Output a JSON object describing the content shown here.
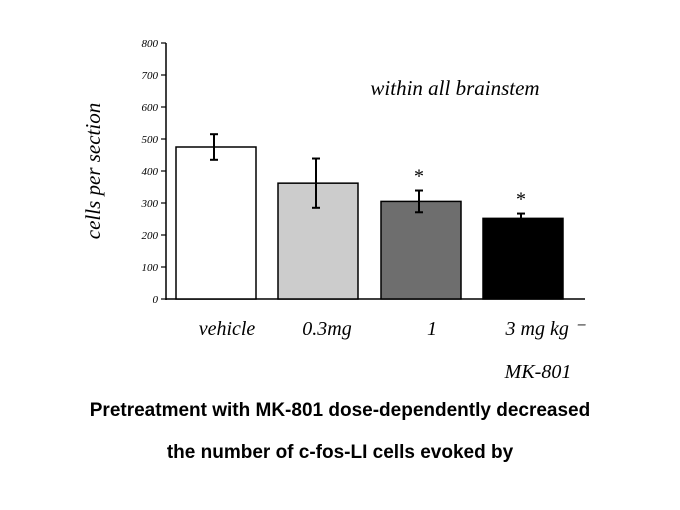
{
  "chart_data": {
    "type": "bar",
    "title": "",
    "xlabel": "",
    "ylabel": "cells per section",
    "ylim": [
      0,
      800
    ],
    "yticks": [
      0,
      100,
      200,
      300,
      400,
      500,
      600,
      700,
      800
    ],
    "categories": [
      "vehicle",
      "0.3mg",
      "1",
      "3 mg kg ⁻"
    ],
    "values": [
      475,
      362,
      305,
      252
    ],
    "errors": [
      40,
      77,
      34,
      15
    ],
    "significance": [
      "",
      "",
      "*",
      "*"
    ],
    "bar_colors": [
      "#ffffff",
      "#cccccc",
      "#6e6e6e",
      "#000000"
    ],
    "annotation": "within all brainstem",
    "group_label": "MK-801",
    "grid": false
  },
  "caption": {
    "line1": "Pretreatment with MK-801 dose-dependently decreased",
    "line2": "the number of c-fos-LI cells evoked by"
  }
}
